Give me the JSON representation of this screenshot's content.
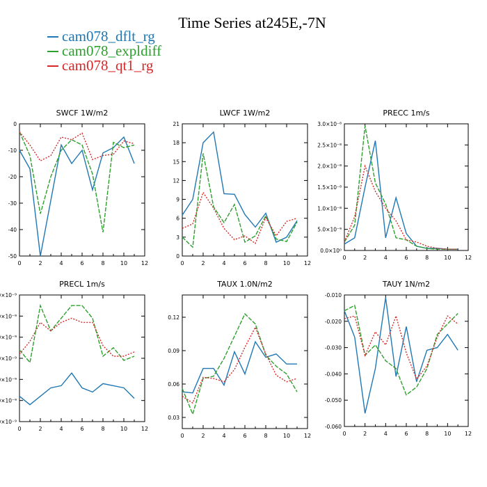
{
  "title": "Time Series at245E,-7N",
  "legend": [
    {
      "label": "cam078_dflt_rg",
      "color": "#1f77b4"
    },
    {
      "label": "cam078_expldiff",
      "color": "#2ca02c"
    },
    {
      "label": "cam078_qt1_rg",
      "color": "#d62728"
    }
  ],
  "chart_data": [
    {
      "type": "line",
      "title": "SWCF   1W/m2",
      "x": [
        0,
        1,
        2,
        3,
        4,
        5,
        6,
        7,
        8,
        9,
        10,
        11
      ],
      "xlim": [
        0,
        12
      ],
      "xticks": [
        0,
        2,
        4,
        6,
        8,
        10,
        12
      ],
      "xtick_labels": [
        "0",
        "2",
        "4",
        "6",
        "8",
        "10",
        "12"
      ],
      "ylim": [
        -50,
        0
      ],
      "yticks": [
        -50,
        -40,
        -30,
        -20,
        -10,
        0
      ],
      "ytick_labels": [
        "-50",
        "-40",
        "-30",
        "-20",
        "-10",
        "0"
      ],
      "series": [
        {
          "name": "cam078_dflt_rg",
          "values": [
            -10,
            -17,
            -50,
            -29,
            -8,
            -15,
            -10,
            -25,
            -11,
            -9,
            -5,
            -15
          ]
        },
        {
          "name": "cam078_expldiff",
          "values": [
            -3,
            -12,
            -34,
            -20,
            -10,
            -6,
            -8,
            -19,
            -41,
            -7,
            -9,
            -8
          ]
        },
        {
          "name": "cam078_qt1_rg",
          "values": [
            -3,
            -8,
            -14,
            -12,
            -5,
            -6,
            -3.5,
            -13.5,
            -12,
            -11.5,
            -6.5,
            -7.5
          ]
        }
      ]
    },
    {
      "type": "line",
      "title": "LWCF   1W/m2",
      "x": [
        0,
        1,
        2,
        3,
        4,
        5,
        6,
        7,
        8,
        9,
        10,
        11
      ],
      "xlim": [
        0,
        12
      ],
      "xticks": [
        0,
        2,
        4,
        6,
        8,
        10,
        12
      ],
      "xtick_labels": [
        "0",
        "2",
        "4",
        "6",
        "8",
        "10",
        "12"
      ],
      "ylim": [
        0,
        21
      ],
      "yticks": [
        0,
        3,
        6,
        9,
        12,
        15,
        18,
        21
      ],
      "ytick_labels": [
        "0",
        "3",
        "6",
        "9",
        "12",
        "15",
        "18",
        "21"
      ],
      "series": [
        {
          "name": "cam078_dflt_rg",
          "values": [
            6.5,
            9,
            18,
            19.7,
            9.9,
            9.8,
            6.6,
            4.6,
            6.8,
            2.2,
            3,
            5.6
          ]
        },
        {
          "name": "cam078_expldiff",
          "values": [
            3,
            1.4,
            16.3,
            7.8,
            5.3,
            8.2,
            2.2,
            3.2,
            6.4,
            2.7,
            2.3,
            5.4
          ]
        },
        {
          "name": "cam078_qt1_rg",
          "values": [
            4.4,
            5.1,
            10.1,
            7.6,
            4.4,
            2.6,
            3.2,
            2,
            6.1,
            3.2,
            5.5,
            6
          ]
        }
      ]
    },
    {
      "type": "line",
      "title": "PRECC   1m/s",
      "x": [
        0,
        1,
        2,
        3,
        4,
        5,
        6,
        7,
        8,
        9,
        10,
        11
      ],
      "xlim": [
        0,
        12
      ],
      "xticks": [
        0,
        2,
        4,
        6,
        8,
        10,
        12
      ],
      "xtick_labels": [
        "0",
        "2",
        "4",
        "6",
        "8",
        "10",
        "12"
      ],
      "ylim": [
        0,
        3e-08
      ],
      "yticks": [
        0,
        5e-09,
        1e-08,
        1.5e-08,
        2e-08,
        2.5e-08,
        3e-08
      ],
      "ytick_labels": [
        "0.0×10⁰",
        "5.0×10⁻⁹",
        "1.0×10⁻⁸",
        "1.5×10⁻⁸",
        "2.0×10⁻⁸",
        "2.5×10⁻⁸",
        "3.0×10⁻⁸"
      ],
      "series": [
        {
          "name": "cam078_dflt_rg",
          "values": [
            1.5e-09,
            3e-09,
            1.5e-08,
            2.6e-08,
            3e-09,
            1.25e-08,
            4e-09,
            1e-09,
            5e-10,
            5e-10,
            3e-10,
            3e-10
          ]
        },
        {
          "name": "cam078_expldiff",
          "values": [
            2e-09,
            6e-09,
            2.95e-08,
            1.6e-08,
            1.1e-08,
            3e-09,
            2.5e-09,
            1e-09,
            5e-10,
            3e-10,
            3e-10,
            3e-10
          ]
        },
        {
          "name": "cam078_qt1_rg",
          "values": [
            2e-09,
            8e-09,
            2e-08,
            1.4e-08,
            1e-08,
            7e-09,
            2.5e-09,
            2e-09,
            1e-09,
            5e-10,
            3e-10,
            3e-10
          ]
        }
      ]
    },
    {
      "type": "line",
      "title": "PRECL   1m/s",
      "x": [
        0,
        1,
        2,
        3,
        4,
        5,
        6,
        7,
        8,
        9,
        10,
        11
      ],
      "xlim": [
        0,
        12
      ],
      "xticks": [
        0,
        2,
        4,
        6,
        8,
        10,
        12
      ],
      "xtick_labels": [
        "0",
        "2",
        "4",
        "6",
        "8",
        "10",
        "12"
      ],
      "ylim": [
        1e-09,
        7e-09
      ],
      "yticks": [
        1e-09,
        2e-09,
        3e-09,
        4e-09,
        5e-09,
        6e-09,
        7e-09
      ],
      "ytick_labels": [
        "1.0×10⁻⁹",
        "2.0×10⁻⁹",
        "3.0×10⁻⁹",
        "4.0×10⁻⁹",
        "5.0×10⁻⁹",
        "6.0×10⁻⁹",
        "7.0×10⁻⁹"
      ],
      "series": [
        {
          "name": "cam078_dflt_rg",
          "values": [
            2.2e-09,
            1.8e-09,
            2.2e-09,
            2.6e-09,
            2.7e-09,
            3.3e-09,
            2.6e-09,
            2.4e-09,
            2.8e-09,
            2.7e-09,
            2.6e-09,
            2.1e-09
          ]
        },
        {
          "name": "cam078_expldiff",
          "values": [
            4.4e-09,
            3.8e-09,
            6.5e-09,
            5.3e-09,
            5.9e-09,
            6.5e-09,
            6.5e-09,
            5.9e-09,
            4.1e-09,
            4.5e-09,
            3.9e-09,
            4.1e-09
          ]
        },
        {
          "name": "cam078_qt1_rg",
          "values": [
            4.2e-09,
            4.8e-09,
            5.7e-09,
            5.3e-09,
            5.7e-09,
            5.9e-09,
            5.7e-09,
            5.7e-09,
            4.6e-09,
            4.1e-09,
            4.1e-09,
            4.3e-09
          ]
        }
      ]
    },
    {
      "type": "line",
      "title": "TAUX   1.0N/m2",
      "x": [
        0,
        1,
        2,
        3,
        4,
        5,
        6,
        7,
        8,
        9,
        10,
        11
      ],
      "xlim": [
        0,
        12
      ],
      "xticks": [
        0,
        2,
        4,
        6,
        8,
        10,
        12
      ],
      "xtick_labels": [
        "0",
        "2",
        "4",
        "6",
        "8",
        "10",
        "12"
      ],
      "ylim": [
        0.02,
        0.14
      ],
      "yticks": [
        0.03,
        0.06,
        0.09,
        0.12
      ],
      "ytick_labels": [
        "0.03",
        "0.06",
        "0.09",
        "0.12"
      ],
      "series": [
        {
          "name": "cam078_dflt_rg",
          "values": [
            0.053,
            0.052,
            0.074,
            0.074,
            0.059,
            0.089,
            0.069,
            0.098,
            0.084,
            0.087,
            0.078,
            0.078
          ]
        },
        {
          "name": "cam078_expldiff",
          "values": [
            0.056,
            0.033,
            0.065,
            0.067,
            0.083,
            0.103,
            0.123,
            0.114,
            0.086,
            0.076,
            0.069,
            0.053
          ]
        },
        {
          "name": "cam078_qt1_rg",
          "values": [
            0.049,
            0.043,
            0.066,
            0.065,
            0.062,
            0.073,
            0.093,
            0.111,
            0.087,
            0.068,
            0.062,
            0.065
          ]
        }
      ]
    },
    {
      "type": "line",
      "title": "TAUY   1N/m2",
      "x": [
        0,
        1,
        2,
        3,
        4,
        5,
        6,
        7,
        8,
        9,
        10,
        11
      ],
      "xlim": [
        0,
        12
      ],
      "xticks": [
        0,
        2,
        4,
        6,
        8,
        10,
        12
      ],
      "xtick_labels": [
        "0",
        "2",
        "4",
        "6",
        "8",
        "10",
        "12"
      ],
      "ylim": [
        -0.06,
        -0.01
      ],
      "yticks": [
        -0.06,
        -0.05,
        -0.04,
        -0.03,
        -0.02,
        -0.01
      ],
      "ytick_labels": [
        "-0.060",
        "-0.050",
        "-0.040",
        "-0.030",
        "-0.020",
        "-0.010"
      ],
      "series": [
        {
          "name": "cam078_dflt_rg",
          "values": [
            -0.016,
            -0.026,
            -0.055,
            -0.038,
            -0.011,
            -0.041,
            -0.022,
            -0.043,
            -0.031,
            -0.03,
            -0.025,
            -0.031
          ]
        },
        {
          "name": "cam078_expldiff",
          "values": [
            -0.016,
            -0.014,
            -0.033,
            -0.029,
            -0.035,
            -0.038,
            -0.048,
            -0.045,
            -0.038,
            -0.025,
            -0.021,
            -0.017
          ]
        },
        {
          "name": "cam078_qt1_rg",
          "values": [
            -0.019,
            -0.018,
            -0.033,
            -0.024,
            -0.029,
            -0.018,
            -0.032,
            -0.042,
            -0.037,
            -0.026,
            -0.018,
            -0.021
          ]
        }
      ]
    }
  ]
}
